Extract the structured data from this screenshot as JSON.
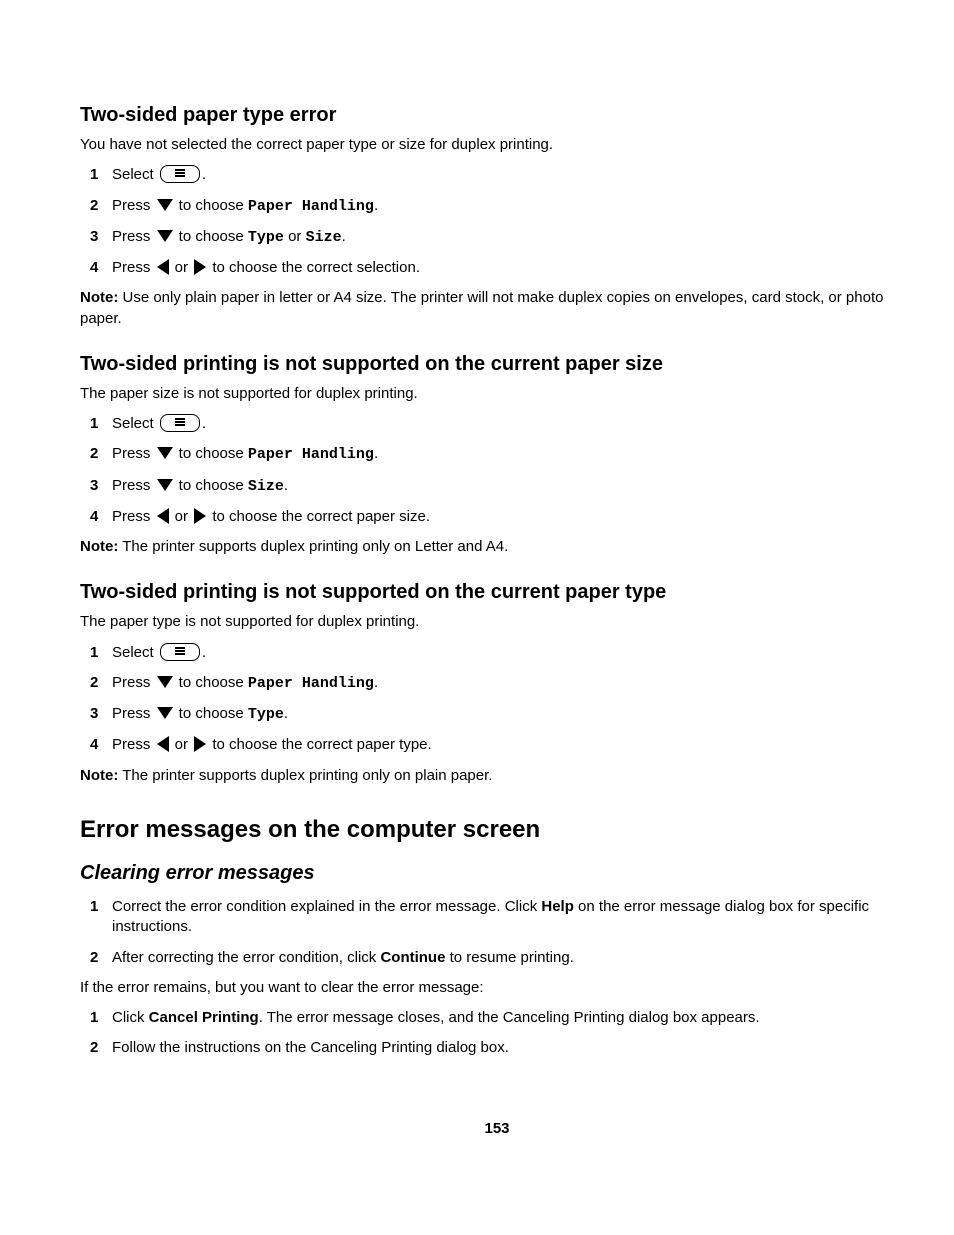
{
  "s1": {
    "title": "Two-sided paper type error",
    "intro": "You have not selected the correct paper type or size for duplex printing.",
    "step1_a": "Select ",
    "step1_b": ".",
    "step2_a": "Press ",
    "step2_b": " to choose ",
    "step2_c": "Paper Handling",
    "step2_d": ".",
    "step3_a": "Press ",
    "step3_b": " to choose ",
    "step3_c": "Type",
    "step3_d": " or ",
    "step3_e": "Size",
    "step3_f": ".",
    "step4_a": "Press ",
    "step4_b": " or ",
    "step4_c": " to choose the correct selection.",
    "note_label": "Note:",
    "note_text": " Use only plain paper in letter or A4 size. The printer will not make duplex copies on envelopes, card stock, or photo paper."
  },
  "s2": {
    "title": "Two-sided printing is not supported on the current paper size",
    "intro": "The paper size is not supported for duplex printing.",
    "step1_a": "Select ",
    "step1_b": ".",
    "step2_a": "Press ",
    "step2_b": " to choose ",
    "step2_c": "Paper Handling",
    "step2_d": ".",
    "step3_a": "Press ",
    "step3_b": " to choose ",
    "step3_c": "Size",
    "step3_d": ".",
    "step4_a": "Press ",
    "step4_b": " or ",
    "step4_c": " to choose the correct paper size.",
    "note_label": "Note:",
    "note_text": " The printer supports duplex printing only on Letter and A4."
  },
  "s3": {
    "title": "Two-sided printing is not supported on the current paper type",
    "intro": "The paper type is not supported for duplex printing.",
    "step1_a": "Select ",
    "step1_b": ".",
    "step2_a": "Press ",
    "step2_b": " to choose ",
    "step2_c": "Paper Handling",
    "step2_d": ".",
    "step3_a": "Press ",
    "step3_b": " to choose ",
    "step3_c": "Type",
    "step3_d": ".",
    "step4_a": "Press ",
    "step4_b": " or ",
    "step4_c": " to choose the correct paper type.",
    "note_label": "Note:",
    "note_text": " The printer supports duplex printing only on plain paper."
  },
  "s4": {
    "title": "Error messages on the computer screen",
    "sub": "Clearing error messages",
    "step1_a": "Correct the error condition explained in the error message. Click ",
    "step1_b": "Help",
    "step1_c": " on the error message dialog box for specific instructions.",
    "step2_a": "After correcting the error condition, click ",
    "step2_b": "Continue",
    "step2_c": " to resume printing.",
    "mid": "If the error remains, but you want to clear the error message:",
    "step3_a": "Click ",
    "step3_b": "Cancel Printing",
    "step3_c": ". The error message closes, and the Canceling Printing dialog box appears.",
    "step4": "Follow the instructions on the Canceling Printing dialog box."
  },
  "page": "153",
  "nums": {
    "n1": "1",
    "n2": "2",
    "n3": "3",
    "n4": "4"
  }
}
